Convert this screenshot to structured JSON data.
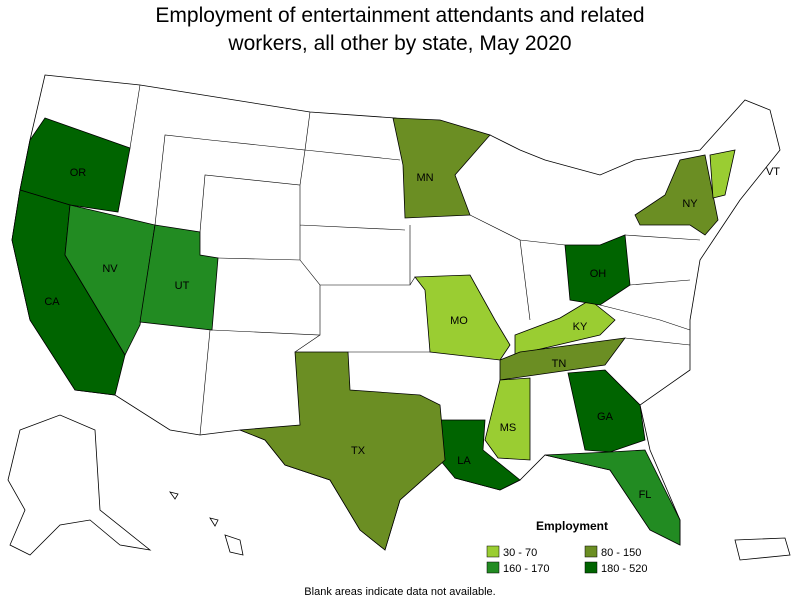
{
  "title_lines": [
    "Employment of entertainment attendants and related",
    "workers, all other by state, May 2020"
  ],
  "legend": {
    "title": "Employment",
    "items": [
      {
        "label": "30 - 70",
        "color": "#9acd32"
      },
      {
        "label": "80 - 150",
        "color": "#6b8e23"
      },
      {
        "label": "160 - 170",
        "color": "#228b22"
      },
      {
        "label": "180 - 520",
        "color": "#006400"
      }
    ]
  },
  "states": [
    {
      "label": "OR",
      "range": 3
    },
    {
      "label": "CA",
      "range": 3
    },
    {
      "label": "NV",
      "range": 2
    },
    {
      "label": "UT",
      "range": 2
    },
    {
      "label": "MN",
      "range": 1
    },
    {
      "label": "MO",
      "range": 0
    },
    {
      "label": "KY",
      "range": 0
    },
    {
      "label": "TN",
      "range": 1
    },
    {
      "label": "MS",
      "range": 0
    },
    {
      "label": "LA",
      "range": 3
    },
    {
      "label": "GA",
      "range": 3
    },
    {
      "label": "FL",
      "range": 2
    },
    {
      "label": "TX",
      "range": 1
    },
    {
      "label": "OH",
      "range": 3
    },
    {
      "label": "NY",
      "range": 1
    },
    {
      "label": "VT",
      "range": 0
    }
  ],
  "footnote": "Blank areas indicate data not available."
}
